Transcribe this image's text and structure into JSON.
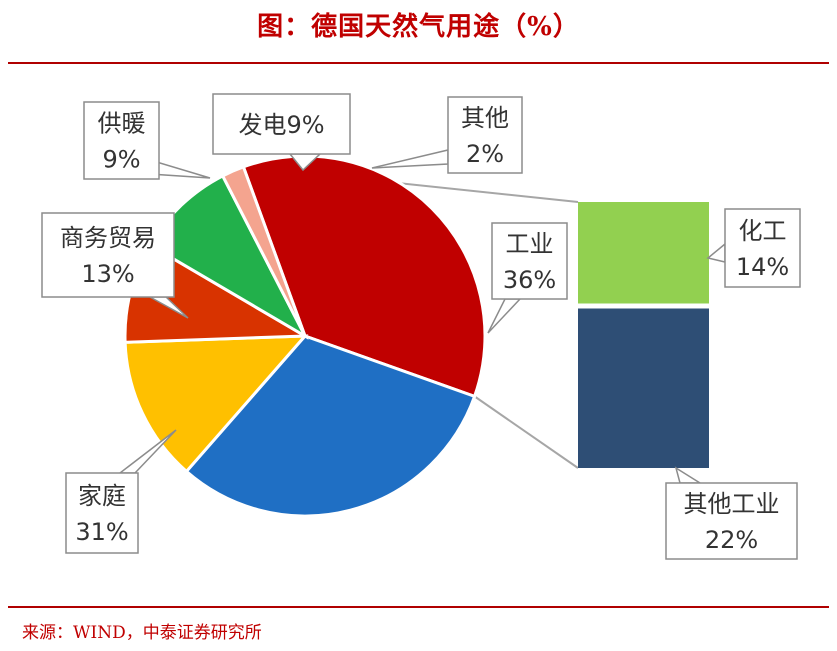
{
  "title": "图：德国天然气用途（%）",
  "source": "来源：WIND，中泰证券研究所",
  "chart_data": {
    "type": "pie",
    "slices": [
      {
        "name": "工业",
        "value": 36,
        "label": "36%",
        "color": "#c00000"
      },
      {
        "name": "家庭",
        "value": 31,
        "label": "31%",
        "color": "#1f6fc4"
      },
      {
        "name": "商务贸易",
        "value": 13,
        "label": "13%",
        "color": "#ffc000"
      },
      {
        "name": "供暖",
        "value": 9,
        "label": "9%",
        "color": "#d83300"
      },
      {
        "name": "发电",
        "value": 9,
        "label": "9%",
        "color": "#22b04b"
      },
      {
        "name": "其他",
        "value": 2,
        "label": "2%",
        "color": "#f4a48f"
      }
    ],
    "breakdown": {
      "of": "工业",
      "segments": [
        {
          "name": "化工",
          "value": 14,
          "label": "14%",
          "color": "#92d050"
        },
        {
          "name": "其他工业",
          "value": 22,
          "label": "22%",
          "color": "#2e4e75"
        }
      ]
    }
  }
}
